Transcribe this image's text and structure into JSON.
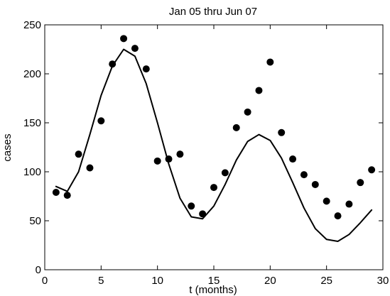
{
  "chart_data": {
    "type": "scatter",
    "title": "Jan 05 thru Jun 07",
    "xlabel": "t (months)",
    "ylabel": "cases",
    "xlim": [
      0,
      30
    ],
    "ylim": [
      0,
      250
    ],
    "x_ticks": [
      0,
      5,
      10,
      15,
      20,
      25,
      30
    ],
    "y_ticks": [
      0,
      50,
      100,
      150,
      200,
      250
    ],
    "grid": false,
    "series": [
      {
        "type": "scatter",
        "marker": "filled-circle",
        "color": "#000000",
        "x": [
          1,
          2,
          3,
          4,
          5,
          6,
          7,
          8,
          9,
          10,
          11,
          12,
          13,
          14,
          15,
          16,
          17,
          18,
          19,
          20,
          21,
          22,
          23,
          24,
          25,
          26,
          27,
          28,
          29
        ],
        "y": [
          79,
          76,
          118,
          104,
          152,
          210,
          236,
          226,
          205,
          111,
          113,
          118,
          65,
          57,
          84,
          99,
          145,
          161,
          183,
          212,
          140,
          113,
          97,
          87,
          70,
          55,
          67,
          89,
          102
        ]
      },
      {
        "type": "line",
        "color": "#000000",
        "x": [
          1,
          2,
          3,
          4,
          5,
          6,
          7,
          8,
          9,
          10,
          11,
          12,
          13,
          14,
          15,
          16,
          17,
          18,
          19,
          20,
          21,
          22,
          23,
          24,
          25,
          26,
          27,
          28,
          29
        ],
        "y": [
          85,
          80,
          100,
          138,
          178,
          208,
          225,
          218,
          190,
          150,
          108,
          73,
          54,
          52,
          65,
          87,
          112,
          131,
          138,
          132,
          114,
          89,
          63,
          42,
          31,
          29,
          36,
          48,
          61
        ]
      }
    ]
  }
}
